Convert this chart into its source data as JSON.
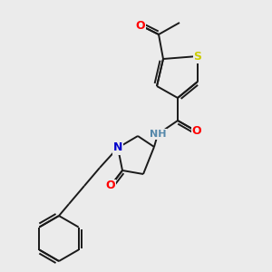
{
  "background_color": "#ebebeb",
  "figsize": [
    3.0,
    3.0
  ],
  "dpi": 100,
  "colors": {
    "bond": "#1a1a1a",
    "S": "#cccc00",
    "O": "#ff0000",
    "N": "#0000cc",
    "NH": "#5588aa",
    "C": "#1a1a1a"
  }
}
